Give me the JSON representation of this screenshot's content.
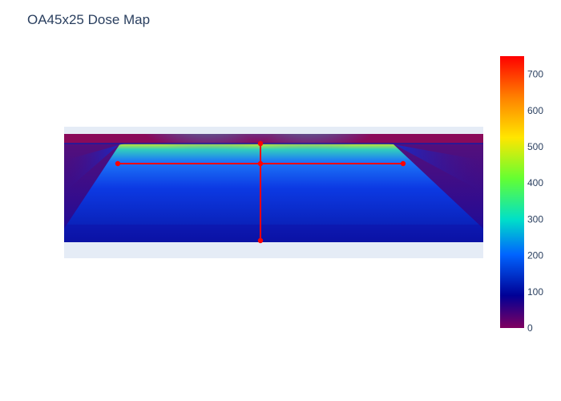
{
  "chart_data": {
    "type": "heatmap",
    "title": "OA45x25 Dose Map",
    "colorbar": {
      "range": [
        0,
        750
      ],
      "tick_values": [
        0,
        100,
        200,
        300,
        400,
        500,
        600,
        700
      ],
      "tick_labels": [
        "0",
        "100",
        "200",
        "300",
        "400",
        "500",
        "600",
        "700"
      ],
      "colorscale": [
        "#800060",
        "#000096",
        "#0064ff",
        "#00e0c8",
        "#64ff32",
        "#ffe600",
        "#ff8000",
        "#ff0000"
      ]
    },
    "dose_profile": {
      "peak_dose": 500,
      "field_dose": 180,
      "background_dose": 70
    },
    "overlay_lines": [
      {
        "name": "horizontal-profile",
        "color": "#ff0000",
        "points": [
          "left",
          "center",
          "right"
        ]
      },
      {
        "name": "vertical-profile",
        "color": "#ff0000",
        "points": [
          "top",
          "center",
          "bottom"
        ]
      }
    ],
    "grid": false,
    "legend": "none",
    "colors": {
      "plot_bg": "#e5ecf6",
      "text": "#2a3f5f",
      "overlay": "#ff0000"
    }
  }
}
